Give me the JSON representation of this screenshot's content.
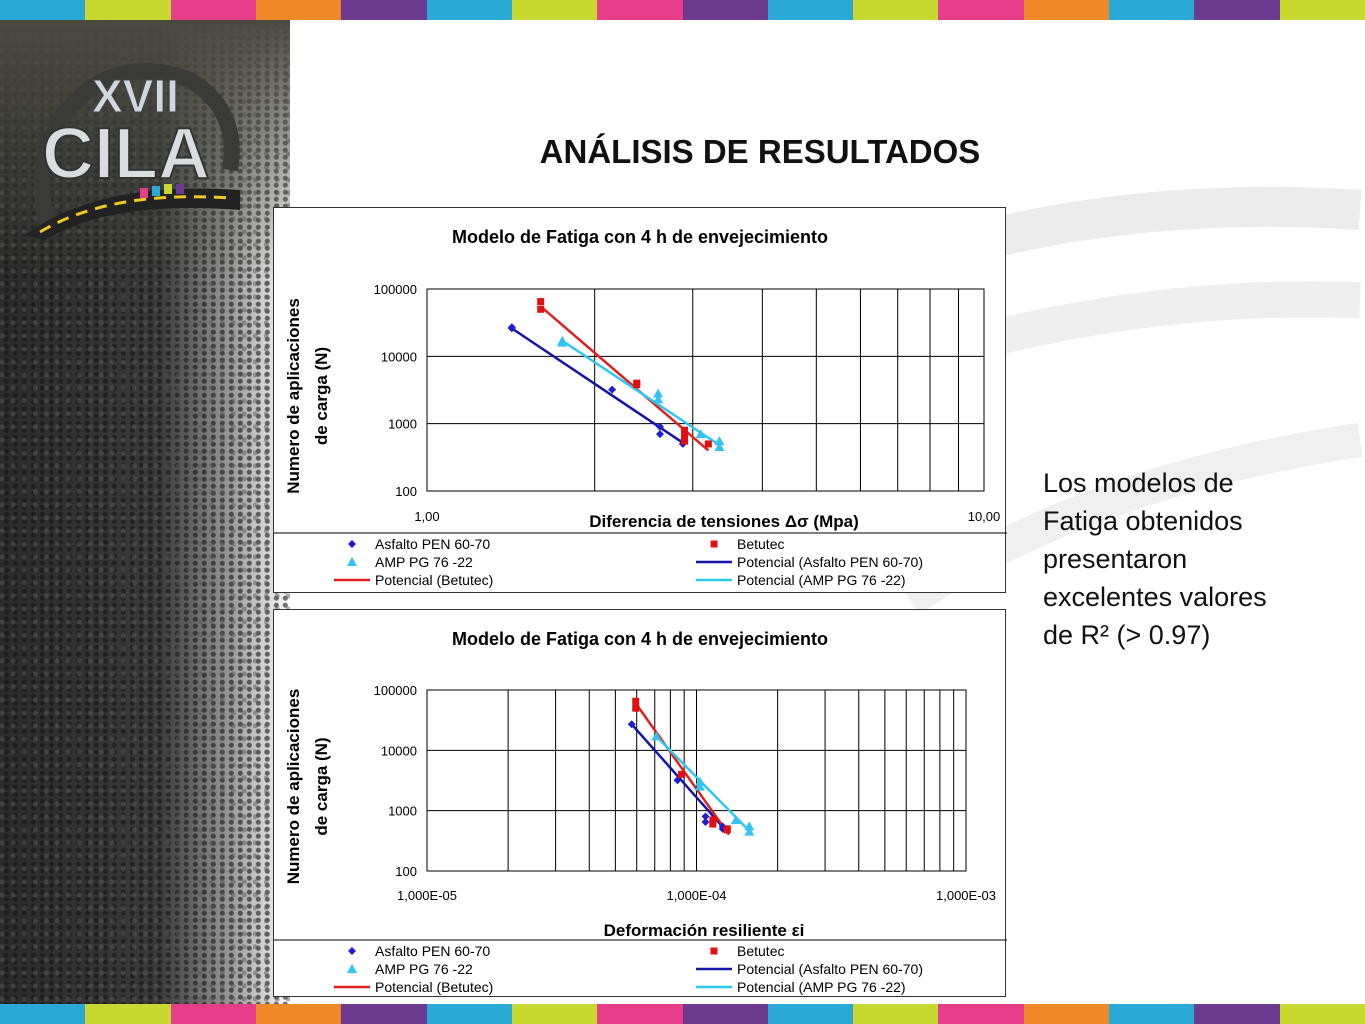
{
  "colors": {
    "stripe": [
      "#29a9d6",
      "#c9d82e",
      "#e63e8a",
      "#ef8a2a",
      "#6c3a8e",
      "#29a9d6",
      "#c9d82e",
      "#e63e8a",
      "#6c3a8e",
      "#29a9d6",
      "#c9d82e",
      "#e63e8a",
      "#ef8a2a",
      "#29a9d6",
      "#6c3a8e",
      "#c9d82e"
    ],
    "asfalto": "#1f1fd0",
    "betutec": "#e01010",
    "amp": "#33c3f0",
    "asfalto_line": "#1414a8",
    "betutec_line": "#e02020",
    "amp_line": "#30c8f0"
  },
  "logo": {
    "roman": "XVII",
    "name": "CILA"
  },
  "slide": {
    "title": "ANÁLISIS DE RESULTADOS",
    "side_text_lines": [
      "Los modelos de",
      "Fatiga obtenidos",
      "presentaron",
      "excelentes valores",
      "de R² (> 0.97)"
    ]
  },
  "chart_data": [
    {
      "type": "scatter",
      "title": "Modelo de Fatiga con 4 h de envejecimiento",
      "xlabel": "Diferencia de tensiones Δσ (Mpa)",
      "ylabel": [
        "Numero de aplicaciones",
        "de carga (N)"
      ],
      "xscale": "log",
      "yscale": "log",
      "xlim": [
        1,
        10
      ],
      "ylim": [
        100,
        100000
      ],
      "xticks": [
        "1,00",
        "10,00"
      ],
      "yticks": [
        "100",
        "1000",
        "10000",
        "100000"
      ],
      "grid": true,
      "legend_position": "bottom",
      "legend": [
        "Asfalto PEN 60-70",
        "Betutec",
        "AMP PG 76 -22",
        "Potencial (Asfalto PEN 60-70)",
        "Potencial (Betutec)",
        "Potencial (AMP PG 76 -22)"
      ],
      "series": [
        {
          "name": "Asfalto PEN 60-70",
          "kind": "points",
          "marker": "diamond",
          "x": [
            1.42,
            1.42,
            2.15,
            2.62,
            2.62,
            2.88,
            2.88
          ],
          "y": [
            27000,
            26000,
            3200,
            900,
            700,
            550,
            500
          ]
        },
        {
          "name": "Betutec",
          "kind": "points",
          "marker": "square",
          "x": [
            1.6,
            1.6,
            2.38,
            2.38,
            2.9,
            2.9,
            2.9,
            3.2
          ],
          "y": [
            65000,
            50000,
            4000,
            3800,
            800,
            650,
            550,
            500
          ]
        },
        {
          "name": "AMP PG 76 -22",
          "kind": "points",
          "marker": "triangle",
          "x": [
            1.75,
            1.75,
            2.6,
            2.6,
            3.1,
            3.35,
            3.35
          ],
          "y": [
            17000,
            16000,
            2800,
            2300,
            700,
            550,
            450
          ]
        },
        {
          "name": "Potencial (Asfalto PEN 60-70)",
          "kind": "line",
          "x": [
            1.42,
            2.88
          ],
          "y": [
            26000,
            520
          ]
        },
        {
          "name": "Potencial (Betutec)",
          "kind": "line",
          "x": [
            1.6,
            3.2
          ],
          "y": [
            55000,
            400
          ]
        },
        {
          "name": "Potencial (AMP PG 76 -22)",
          "kind": "line",
          "x": [
            1.75,
            3.35
          ],
          "y": [
            17000,
            480
          ]
        }
      ]
    },
    {
      "type": "scatter",
      "title": "Modelo de Fatiga con 4 h de envejecimiento",
      "xlabel": "Deformación resiliente εi",
      "ylabel": [
        "Numero de aplicaciones",
        "de carga (N)"
      ],
      "xscale": "log",
      "yscale": "log",
      "xlim": [
        1e-05,
        0.001
      ],
      "ylim": [
        100,
        100000
      ],
      "xticks": [
        "1,000E-05",
        "1,000E-04",
        "1,000E-03"
      ],
      "yticks": [
        "100",
        "1000",
        "10000",
        "100000"
      ],
      "grid": true,
      "legend_position": "bottom",
      "legend": [
        "Asfalto PEN 60-70",
        "Betutec",
        "AMP PG 76 -22",
        "Potencial (Asfalto PEN 60-70)",
        "Potencial (Betutec)",
        "Potencial (AMP PG 76 -22)"
      ],
      "series": [
        {
          "name": "Asfalto PEN 60-70",
          "kind": "points",
          "marker": "diamond",
          "x": [
            5.75e-05,
            8.5e-05,
            0.000108,
            0.000108,
            0.000125,
            0.000125
          ],
          "y": [
            27000,
            3200,
            800,
            650,
            550,
            500
          ]
        },
        {
          "name": "Betutec",
          "kind": "points",
          "marker": "square",
          "x": [
            5.95e-05,
            5.95e-05,
            8.8e-05,
            0.000115,
            0.000115,
            0.00013,
            0.00013
          ],
          "y": [
            65000,
            50000,
            4000,
            700,
            600,
            500,
            480
          ]
        },
        {
          "name": "AMP PG 76 -22",
          "kind": "points",
          "marker": "triangle",
          "x": [
            7.1e-05,
            0.000103,
            0.000103,
            0.00014,
            0.000157,
            0.000157
          ],
          "y": [
            17000,
            3000,
            2500,
            700,
            550,
            450
          ]
        },
        {
          "name": "Potencial (Asfalto PEN 60-70)",
          "kind": "line",
          "x": [
            5.75e-05,
            0.000128
          ],
          "y": [
            27000,
            480
          ]
        },
        {
          "name": "Potencial (Betutec)",
          "kind": "line",
          "x": [
            5.95e-05,
            0.000132
          ],
          "y": [
            60000,
            400
          ]
        },
        {
          "name": "Potencial (AMP PG 76 -22)",
          "kind": "line",
          "x": [
            7.1e-05,
            0.000158
          ],
          "y": [
            17000,
            450
          ]
        }
      ]
    }
  ]
}
